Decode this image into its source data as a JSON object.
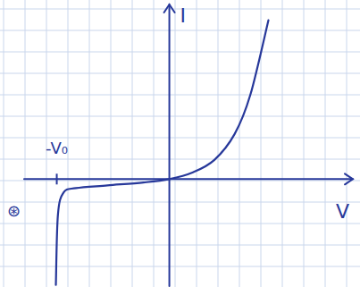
{
  "chart_data": {
    "type": "line",
    "x_label": "V",
    "y_label": "I",
    "x": [
      -1.008,
      -0.99,
      -0.94,
      -0.83,
      -0.55,
      -0.23,
      0,
      0.21,
      0.4,
      0.58,
      0.72,
      0.88
    ],
    "values": [
      -0.94,
      -0.32,
      -0.12,
      -0.08,
      -0.056,
      -0.03,
      0,
      0.06,
      0.17,
      0.4,
      0.75,
      1.41
    ],
    "xlim": [
      -1.29,
      1.63
    ],
    "ylim": [
      -0.95,
      1.55
    ],
    "xticks": [
      {
        "value": -1,
        "label": "-V₀"
      }
    ],
    "yticks": [],
    "color": "#27389a",
    "annotations": [
      {
        "text": "⊛"
      }
    ]
  }
}
